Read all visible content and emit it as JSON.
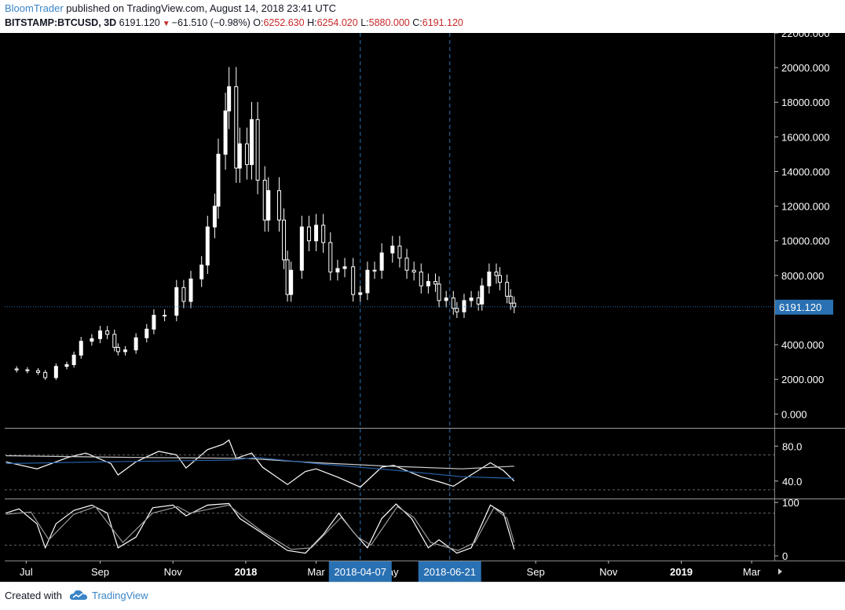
{
  "header": {
    "author": "BloomTrader",
    "published_text": "published on TradingView.com, August 14, 2018 23:41 UTC",
    "symbol": "BITSTAMP:BTCUSD, 3D",
    "last": "6191.120",
    "change": "−61.510 (−0.98%)",
    "o_label": "O:",
    "o_value": "6252.630",
    "h_label": "H:",
    "h_value": "6254.020",
    "l_label": "L:",
    "l_value": "5880.000",
    "c_label": "C:",
    "c_value": "6191.120"
  },
  "footer": {
    "created_with": "Created with",
    "brand": "TradingView",
    "logo_icon": "tradingview-cloud-icon"
  },
  "colors": {
    "background": "#000000",
    "candle": "#ffffff",
    "accent": "#2a71b3",
    "grid_dotted": "#666666",
    "signal_line": "#2962a8"
  },
  "chart_data": {
    "type": "candlestick",
    "interval": "3D",
    "last_price": 6191.12,
    "last_price_label": "6191.120",
    "price_axis": {
      "ylim": [
        -800,
        22000
      ],
      "ticks": [
        0,
        2000,
        4000,
        6000,
        8000,
        10000,
        12000,
        14000,
        16000,
        18000,
        20000,
        22000
      ],
      "tick_labels": [
        "0.000",
        "2000.000",
        "4000.000",
        "6000.000",
        "8000.000",
        "10000.000",
        "12000.000",
        "14000.000",
        "16000.000",
        "18000.000",
        "20000.000",
        "22000.000"
      ],
      "hidden_tick": 6000
    },
    "time_axis": {
      "labels": [
        "Jul",
        "Sep",
        "Nov",
        "2018",
        "Mar",
        "May",
        "Jul",
        "Sep",
        "Nov",
        "2019",
        "Mar"
      ],
      "bold_labels": [
        "2018",
        "2019"
      ],
      "range": [
        "2017-06-13",
        "2019-03-20"
      ]
    },
    "vertical_markers": [
      {
        "date": "2018-04-07",
        "label": "2018-04-07"
      },
      {
        "date": "2018-06-21",
        "label": "2018-06-21"
      }
    ],
    "price_series": {
      "name": "BTCUSD close",
      "points": [
        [
          "2017-06-14",
          2600
        ],
        [
          "2017-06-23",
          2550
        ],
        [
          "2017-07-02",
          2500
        ],
        [
          "2017-07-11",
          2400
        ],
        [
          "2017-07-17",
          2100
        ],
        [
          "2017-07-26",
          2750
        ],
        [
          "2017-08-04",
          2850
        ],
        [
          "2017-08-10",
          3400
        ],
        [
          "2017-08-16",
          4200
        ],
        [
          "2017-08-25",
          4350
        ],
        [
          "2017-09-01",
          4800
        ],
        [
          "2017-09-07",
          4600
        ],
        [
          "2017-09-13",
          3850
        ],
        [
          "2017-09-16",
          3600
        ],
        [
          "2017-09-22",
          3700
        ],
        [
          "2017-10-01",
          4400
        ],
        [
          "2017-10-10",
          4900
        ],
        [
          "2017-10-16",
          5700
        ],
        [
          "2017-10-25",
          5700
        ],
        [
          "2017-11-04",
          7300
        ],
        [
          "2017-11-10",
          6500
        ],
        [
          "2017-11-16",
          7800
        ],
        [
          "2017-11-25",
          8600
        ],
        [
          "2017-11-30",
          10800
        ],
        [
          "2017-12-06",
          12000
        ],
        [
          "2017-12-09",
          15000
        ],
        [
          "2017-12-15",
          17500
        ],
        [
          "2017-12-18",
          18900
        ],
        [
          "2017-12-24",
          14200
        ],
        [
          "2017-12-27",
          15600
        ],
        [
          "2018-01-02",
          14400
        ],
        [
          "2018-01-06",
          17000
        ],
        [
          "2018-01-11",
          13500
        ],
        [
          "2018-01-17",
          11200
        ],
        [
          "2018-01-20",
          12900
        ],
        [
          "2018-01-29",
          11200
        ],
        [
          "2018-02-02",
          8900
        ],
        [
          "2018-02-05",
          6900
        ],
        [
          "2018-02-08",
          8300
        ],
        [
          "2018-02-17",
          10800
        ],
        [
          "2018-02-23",
          10000
        ],
        [
          "2018-03-01",
          10900
        ],
        [
          "2018-03-07",
          9900
        ],
        [
          "2018-03-13",
          8200
        ],
        [
          "2018-03-19",
          8400
        ],
        [
          "2018-03-25",
          8500
        ],
        [
          "2018-04-01",
          6900
        ],
        [
          "2018-04-07",
          7000
        ],
        [
          "2018-04-13",
          8300
        ],
        [
          "2018-04-19",
          8300
        ],
        [
          "2018-04-25",
          9300
        ],
        [
          "2018-05-04",
          9700
        ],
        [
          "2018-05-10",
          9000
        ],
        [
          "2018-05-16",
          8300
        ],
        [
          "2018-05-22",
          8200
        ],
        [
          "2018-05-28",
          7400
        ],
        [
          "2018-06-03",
          7650
        ],
        [
          "2018-06-09",
          7500
        ],
        [
          "2018-06-12",
          6550
        ],
        [
          "2018-06-18",
          6700
        ],
        [
          "2018-06-24",
          6100
        ],
        [
          "2018-06-27",
          5900
        ],
        [
          "2018-07-03",
          6550
        ],
        [
          "2018-07-09",
          6700
        ],
        [
          "2018-07-15",
          6350
        ],
        [
          "2018-07-18",
          7400
        ],
        [
          "2018-07-24",
          8200
        ],
        [
          "2018-07-30",
          8000
        ],
        [
          "2018-08-02",
          7600
        ],
        [
          "2018-08-08",
          6800
        ],
        [
          "2018-08-11",
          6400
        ],
        [
          "2018-08-14",
          6191
        ]
      ]
    },
    "rsi": {
      "ylim": [
        20,
        100
      ],
      "ticks": [
        40,
        80
      ],
      "tick_labels": [
        "40.0",
        "80.0"
      ],
      "band": [
        30,
        70
      ],
      "series": [
        {
          "role": "rsi",
          "points": [
            [
              "2017-06-14",
              62
            ],
            [
              "2017-07-10",
              54
            ],
            [
              "2017-08-05",
              67
            ],
            [
              "2017-08-20",
              72
            ],
            [
              "2017-09-10",
              60
            ],
            [
              "2017-09-16",
              47
            ],
            [
              "2017-10-01",
              62
            ],
            [
              "2017-10-20",
              74
            ],
            [
              "2017-11-04",
              70
            ],
            [
              "2017-11-12",
              55
            ],
            [
              "2017-11-30",
              76
            ],
            [
              "2017-12-13",
              82
            ],
            [
              "2017-12-18",
              87
            ],
            [
              "2017-12-24",
              66
            ],
            [
              "2018-01-06",
              72
            ],
            [
              "2018-01-15",
              56
            ],
            [
              "2018-02-05",
              36
            ],
            [
              "2018-02-20",
              51
            ],
            [
              "2018-03-01",
              54
            ],
            [
              "2018-03-20",
              44
            ],
            [
              "2018-04-07",
              33
            ],
            [
              "2018-04-25",
              56
            ],
            [
              "2018-05-05",
              58
            ],
            [
              "2018-05-28",
              45
            ],
            [
              "2018-06-15",
              38
            ],
            [
              "2018-06-24",
              34
            ],
            [
              "2018-07-03",
              42
            ],
            [
              "2018-07-25",
              61
            ],
            [
              "2018-08-05",
              52
            ],
            [
              "2018-08-14",
              40
            ]
          ]
        },
        {
          "role": "rsi-signal",
          "points": [
            [
              "2017-06-14",
              69
            ],
            [
              "2017-10-01",
              67
            ],
            [
              "2018-01-01",
              66
            ],
            [
              "2018-03-01",
              61
            ],
            [
              "2018-05-01",
              57
            ],
            [
              "2018-07-01",
              54
            ],
            [
              "2018-08-14",
              57
            ]
          ]
        },
        {
          "role": "rsi-ma",
          "points": [
            [
              "2017-06-14",
              60
            ],
            [
              "2017-09-01",
              62
            ],
            [
              "2017-12-20",
              64
            ],
            [
              "2018-01-10",
              67
            ],
            [
              "2018-03-01",
              60
            ],
            [
              "2018-05-01",
              53
            ],
            [
              "2018-07-01",
              45
            ],
            [
              "2018-08-14",
              43
            ]
          ]
        }
      ]
    },
    "stoch": {
      "ylim": [
        0,
        100
      ],
      "ticks": [
        0,
        100
      ],
      "tick_labels": [
        "0",
        "100"
      ],
      "band": [
        20,
        80
      ],
      "series": [
        {
          "role": "k",
          "points": [
            [
              "2017-06-14",
              80
            ],
            [
              "2017-06-25",
              88
            ],
            [
              "2017-07-10",
              60
            ],
            [
              "2017-07-17",
              15
            ],
            [
              "2017-07-26",
              60
            ],
            [
              "2017-08-10",
              85
            ],
            [
              "2017-08-25",
              95
            ],
            [
              "2017-09-07",
              80
            ],
            [
              "2017-09-16",
              15
            ],
            [
              "2017-10-01",
              35
            ],
            [
              "2017-10-15",
              90
            ],
            [
              "2017-11-01",
              95
            ],
            [
              "2017-11-12",
              75
            ],
            [
              "2017-11-30",
              95
            ],
            [
              "2017-12-18",
              98
            ],
            [
              "2017-12-27",
              70
            ],
            [
              "2018-01-11",
              48
            ],
            [
              "2018-02-05",
              10
            ],
            [
              "2018-02-20",
              5
            ],
            [
              "2018-03-07",
              40
            ],
            [
              "2018-03-20",
              80
            ],
            [
              "2018-04-01",
              45
            ],
            [
              "2018-04-13",
              15
            ],
            [
              "2018-04-25",
              70
            ],
            [
              "2018-05-07",
              97
            ],
            [
              "2018-05-20",
              70
            ],
            [
              "2018-06-03",
              15
            ],
            [
              "2018-06-12",
              30
            ],
            [
              "2018-06-27",
              5
            ],
            [
              "2018-07-09",
              15
            ],
            [
              "2018-07-25",
              95
            ],
            [
              "2018-08-05",
              80
            ],
            [
              "2018-08-14",
              12
            ]
          ]
        },
        {
          "role": "d",
          "points": [
            [
              "2017-06-14",
              78
            ],
            [
              "2017-07-05",
              82
            ],
            [
              "2017-07-20",
              30
            ],
            [
              "2017-08-10",
              78
            ],
            [
              "2017-08-28",
              92
            ],
            [
              "2017-09-20",
              25
            ],
            [
              "2017-10-15",
              80
            ],
            [
              "2017-11-05",
              92
            ],
            [
              "2017-11-15",
              80
            ],
            [
              "2017-12-18",
              95
            ],
            [
              "2017-12-30",
              72
            ],
            [
              "2018-01-15",
              45
            ],
            [
              "2018-02-08",
              12
            ],
            [
              "2018-02-25",
              15
            ],
            [
              "2018-03-22",
              72
            ],
            [
              "2018-04-05",
              35
            ],
            [
              "2018-04-16",
              20
            ],
            [
              "2018-05-08",
              92
            ],
            [
              "2018-05-22",
              72
            ],
            [
              "2018-06-05",
              25
            ],
            [
              "2018-06-28",
              10
            ],
            [
              "2018-07-12",
              25
            ],
            [
              "2018-07-28",
              90
            ],
            [
              "2018-08-08",
              70
            ],
            [
              "2018-08-14",
              25
            ]
          ]
        }
      ]
    }
  }
}
